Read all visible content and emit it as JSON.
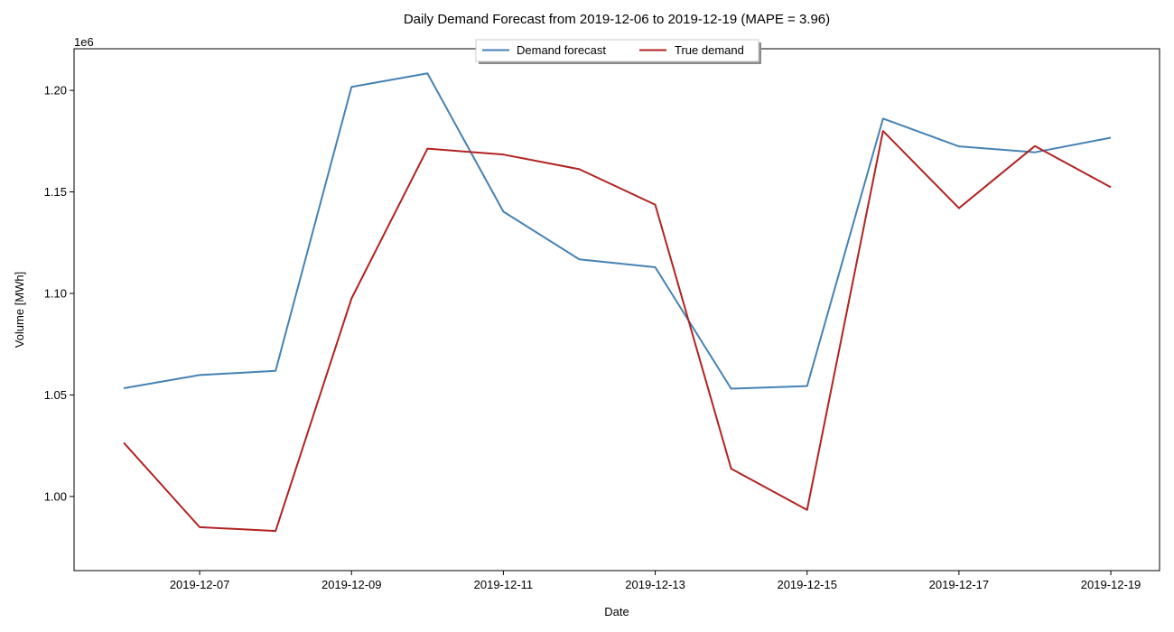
{
  "chart_data": {
    "type": "line",
    "title": "Daily Demand Forecast from 2019-12-06 to 2019-12-19 (MAPE = 3.96)",
    "xlabel": "Date",
    "ylabel": "Volume [MWh]",
    "y_multiplier": "1e6",
    "x": [
      "2019-12-06",
      "2019-12-07",
      "2019-12-08",
      "2019-12-09",
      "2019-12-10",
      "2019-12-11",
      "2019-12-12",
      "2019-12-13",
      "2019-12-14",
      "2019-12-15",
      "2019-12-16",
      "2019-12-17",
      "2019-12-18",
      "2019-12-19"
    ],
    "x_ticks": [
      "2019-12-07",
      "2019-12-09",
      "2019-12-11",
      "2019-12-13",
      "2019-12-15",
      "2019-12-17",
      "2019-12-19"
    ],
    "y_ticks": [
      1.0,
      1.05,
      1.1,
      1.15,
      1.2
    ],
    "y_tick_labels": [
      "1.00",
      "1.05",
      "1.10",
      "1.15",
      "1.20"
    ],
    "ylim": [
      0.9635,
      1.2205
    ],
    "grid": false,
    "legend_placement": "top-center",
    "series": [
      {
        "name": "Demand forecast",
        "color": "#4682b4",
        "values": [
          1.0533,
          1.0598,
          1.0619,
          1.2017,
          1.2084,
          1.1403,
          1.1168,
          1.1129,
          1.0531,
          1.0544,
          1.1861,
          1.1724,
          1.1695,
          1.1767
        ]
      },
      {
        "name": "True demand",
        "color": "#b22222",
        "values": [
          1.0265,
          0.9849,
          0.983,
          1.0975,
          1.1713,
          1.1684,
          1.1612,
          1.1437,
          1.0137,
          0.9934,
          1.18,
          1.142,
          1.1726,
          1.1523
        ]
      }
    ]
  }
}
